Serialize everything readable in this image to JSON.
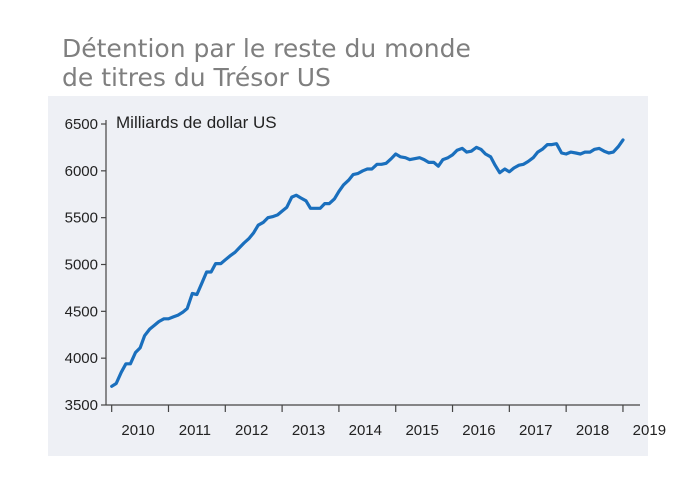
{
  "title_line1": "Détention par le reste du monde",
  "title_line2": "de titres du Trésor US",
  "chart_data": {
    "type": "line",
    "title": "Détention par le reste du monde de titres du Trésor US",
    "ylabel": "Milliards de dollar US",
    "xlabel": "",
    "ylim": [
      3500,
      6500
    ],
    "yticks": [
      3500,
      4000,
      4500,
      5000,
      5500,
      6000,
      6500
    ],
    "xlim": [
      2009.9,
      2019.3
    ],
    "xticks": [
      2010,
      2011,
      2012,
      2013,
      2014,
      2015,
      2016,
      2017,
      2018,
      2019
    ],
    "grid": false,
    "line_color": "#1a6fbd",
    "series": [
      {
        "x": [
          2010.0,
          2010.08,
          2010.17,
          2010.25,
          2010.33,
          2010.42,
          2010.5,
          2010.58,
          2010.67,
          2010.75,
          2010.83,
          2010.92,
          2011.0,
          2011.08,
          2011.17,
          2011.25,
          2011.33,
          2011.42,
          2011.5,
          2011.58,
          2011.67,
          2011.75,
          2011.83,
          2011.92,
          2012.0,
          2012.08,
          2012.17,
          2012.25,
          2012.33,
          2012.42,
          2012.5,
          2012.58,
          2012.67,
          2012.75,
          2012.83,
          2012.92,
          2013.0,
          2013.08,
          2013.17,
          2013.25,
          2013.33,
          2013.42,
          2013.5,
          2013.58,
          2013.67,
          2013.75,
          2013.83,
          2013.92,
          2014.0,
          2014.08,
          2014.17,
          2014.25,
          2014.33,
          2014.42,
          2014.5,
          2014.58,
          2014.67,
          2014.75,
          2014.83,
          2014.92,
          2015.0,
          2015.08,
          2015.17,
          2015.25,
          2015.33,
          2015.42,
          2015.5,
          2015.58,
          2015.67,
          2015.75,
          2015.83,
          2015.92,
          2016.0,
          2016.08,
          2016.17,
          2016.25,
          2016.33,
          2016.42,
          2016.5,
          2016.58,
          2016.67,
          2016.75,
          2016.83,
          2016.92,
          2017.0,
          2017.08,
          2017.17,
          2017.25,
          2017.33,
          2017.42,
          2017.5,
          2017.58,
          2017.67,
          2017.75,
          2017.83,
          2017.92,
          2018.0,
          2018.08,
          2018.17,
          2018.25,
          2018.33,
          2018.42,
          2018.5,
          2018.58,
          2018.67,
          2018.75,
          2018.83,
          2018.92,
          2019.0
        ],
        "values": [
          3700,
          3730,
          3850,
          3940,
          3940,
          4060,
          4110,
          4240,
          4310,
          4350,
          4390,
          4420,
          4420,
          4440,
          4460,
          4490,
          4530,
          4690,
          4680,
          4790,
          4920,
          4920,
          5010,
          5010,
          5050,
          5090,
          5130,
          5180,
          5230,
          5280,
          5340,
          5420,
          5450,
          5500,
          5510,
          5530,
          5570,
          5610,
          5720,
          5740,
          5710,
          5680,
          5600,
          5600,
          5600,
          5650,
          5650,
          5700,
          5780,
          5850,
          5900,
          5960,
          5970,
          6000,
          6020,
          6020,
          6070,
          6070,
          6080,
          6130,
          6180,
          6150,
          6140,
          6120,
          6130,
          6140,
          6120,
          6090,
          6090,
          6050,
          6120,
          6140,
          6170,
          6220,
          6240,
          6200,
          6210,
          6250,
          6230,
          6180,
          6150,
          6060,
          5980,
          6020,
          5990,
          6030,
          6060,
          6070,
          6100,
          6140,
          6200,
          6230,
          6280,
          6280,
          6290,
          6190,
          6180,
          6200,
          6190,
          6180,
          6200,
          6200,
          6230,
          6240,
          6210,
          6190,
          6200,
          6260,
          6330
        ]
      }
    ]
  }
}
